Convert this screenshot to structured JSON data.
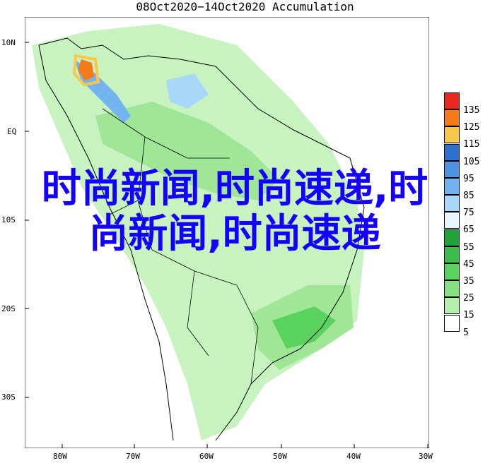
{
  "title": "08Oct2020−14Oct2020 Accumulation",
  "lat_labels": [
    "10N",
    "EQ",
    "10S",
    "20S",
    "30S"
  ],
  "lon_labels": [
    "80W",
    "70W",
    "60W",
    "50W",
    "40W",
    "30W"
  ],
  "legend": {
    "labels": [
      "135",
      "125",
      "115",
      "105",
      "95",
      "85",
      "75",
      "65",
      "55",
      "45",
      "35",
      "25",
      "15",
      "5"
    ],
    "colors": [
      "#e8281c",
      "#f47a1a",
      "#f9c84a",
      "#2f6fd0",
      "#4d93e0",
      "#73b4f0",
      "#a8d8f8",
      "#e6f8fd",
      "#23a13a",
      "#3cbc4a",
      "#5ad25e",
      "#86e182",
      "#b6eeae",
      "#ffffff"
    ]
  },
  "overlay_text": "时尚新闻,时尚速递,时尚新闻,时尚速递"
}
